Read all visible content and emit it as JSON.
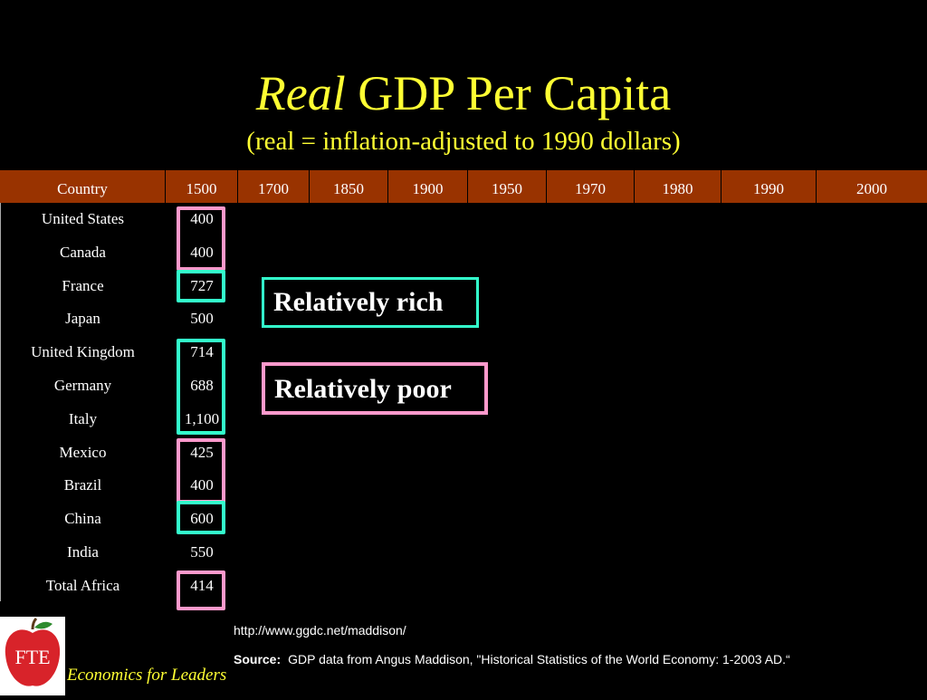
{
  "title": {
    "italic": "Real",
    "rest": "GDP Per Capita"
  },
  "subtitle": "(real = inflation-adjusted to 1990 dollars)",
  "table": {
    "headers": [
      "Country",
      "1500",
      "1700",
      "1850",
      "1900",
      "1950",
      "1970",
      "1980",
      "1990",
      "2000"
    ],
    "rows": [
      {
        "country": "United States",
        "v1500": "400"
      },
      {
        "country": "Canada",
        "v1500": "400"
      },
      {
        "country": "France",
        "v1500": "727"
      },
      {
        "country": "Japan",
        "v1500": "500"
      },
      {
        "country": "United Kingdom",
        "v1500": "714"
      },
      {
        "country": "Germany",
        "v1500": "688"
      },
      {
        "country": "Italy",
        "v1500": "1,100"
      },
      {
        "country": "Mexico",
        "v1500": "425"
      },
      {
        "country": "Brazil",
        "v1500": "400"
      },
      {
        "country": "China",
        "v1500": "600"
      },
      {
        "country": "India",
        "v1500": "550"
      },
      {
        "country": "Total Africa",
        "v1500": "414"
      }
    ]
  },
  "legend": {
    "rich": "Relatively rich",
    "poor": "Relatively poor"
  },
  "colors": {
    "rich": "#33ffcc",
    "poor": "#ff99cc",
    "header_bg": "#993300",
    "title": "#ffff33"
  },
  "footer": {
    "url": "http://www.ggdc.net/maddison/",
    "source_label": "Source:",
    "source_text": "GDP data from Angus Maddison, \"Historical Statistics of the World Economy: 1-2003 AD.“",
    "logo_text": "FTE",
    "tagline": "Economics for Leaders"
  }
}
